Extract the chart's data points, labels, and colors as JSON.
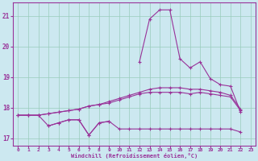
{
  "xlabel": "Windchill (Refroidissement éolien,°C)",
  "background_color": "#cce8f0",
  "grid_color": "#99ccbb",
  "line_color": "#993399",
  "x_ticks": [
    0,
    1,
    2,
    3,
    4,
    5,
    6,
    7,
    8,
    9,
    10,
    11,
    12,
    13,
    14,
    15,
    16,
    17,
    18,
    19,
    20,
    21,
    22,
    23
  ],
  "ylim": [
    16.75,
    21.45
  ],
  "xlim": [
    -0.5,
    23.5
  ],
  "series": {
    "line1": [
      17.75,
      17.75,
      17.75,
      17.8,
      17.85,
      17.9,
      17.95,
      18.05,
      18.1,
      18.2,
      18.3,
      18.4,
      18.5,
      18.6,
      18.65,
      18.65,
      18.65,
      18.6,
      18.6,
      18.55,
      18.5,
      18.4,
      17.95,
      null
    ],
    "line2": [
      17.75,
      17.75,
      17.75,
      17.8,
      17.85,
      17.9,
      17.95,
      18.05,
      18.1,
      18.15,
      18.25,
      18.35,
      18.45,
      18.5,
      18.5,
      18.5,
      18.5,
      18.45,
      18.5,
      18.45,
      18.4,
      18.35,
      17.9,
      null
    ],
    "line3": [
      17.75,
      17.75,
      17.75,
      17.4,
      17.5,
      17.6,
      17.6,
      17.1,
      17.5,
      17.55,
      17.3,
      17.3,
      17.3,
      17.3,
      17.3,
      17.3,
      17.3,
      17.3,
      17.3,
      17.3,
      17.3,
      17.3,
      17.2,
      null
    ],
    "line4": [
      null,
      null,
      null,
      17.4,
      17.5,
      17.6,
      17.6,
      17.1,
      17.5,
      17.55,
      null,
      null,
      null,
      null,
      null,
      null,
      null,
      null,
      null,
      null,
      null,
      null,
      null,
      null
    ],
    "line5": [
      null,
      null,
      null,
      null,
      null,
      null,
      null,
      null,
      null,
      null,
      null,
      null,
      19.5,
      20.9,
      21.2,
      21.2,
      19.6,
      19.3,
      19.5,
      18.95,
      18.75,
      18.7,
      17.85,
      null
    ]
  }
}
